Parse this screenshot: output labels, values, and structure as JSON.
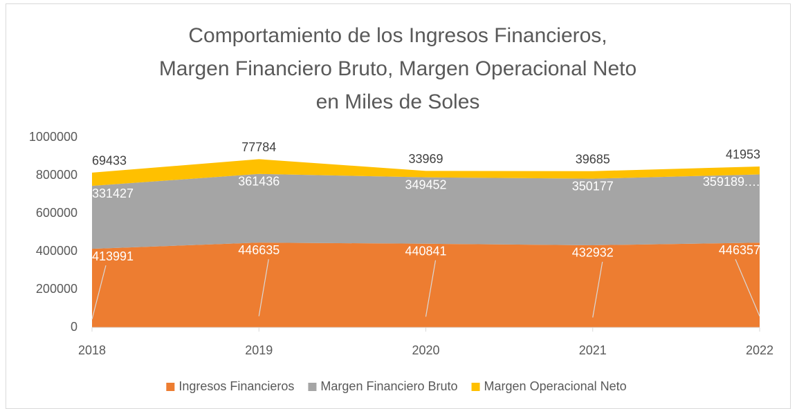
{
  "chart_data": {
    "type": "area",
    "title": "Comportamiento de los Ingresos Financieros, Margen Financiero Bruto, Margen Operacional Neto en Miles de Soles",
    "categories": [
      "2018",
      "2019",
      "2020",
      "2021",
      "2022"
    ],
    "series": [
      {
        "name": "Ingresos Financieros",
        "color": "#ed7d31",
        "values": [
          413991,
          446635,
          440841,
          432932,
          446357
        ]
      },
      {
        "name": "Margen Financiero Bruto",
        "color": "#a5a5a5",
        "values": [
          331427,
          361436,
          349452,
          350177,
          359189
        ],
        "value_labels": [
          "331427",
          "361436",
          "349452",
          "350177",
          "359189.…"
        ]
      },
      {
        "name": "Margen Operacional Neto",
        "color": "#ffc000",
        "values": [
          69433,
          77784,
          33969,
          39685,
          41953
        ]
      }
    ],
    "stacked": true,
    "ylim": [
      0,
      1000000
    ],
    "yticks": [
      0,
      200000,
      400000,
      600000,
      800000,
      1000000
    ],
    "grid": false,
    "legend": "bottom"
  }
}
